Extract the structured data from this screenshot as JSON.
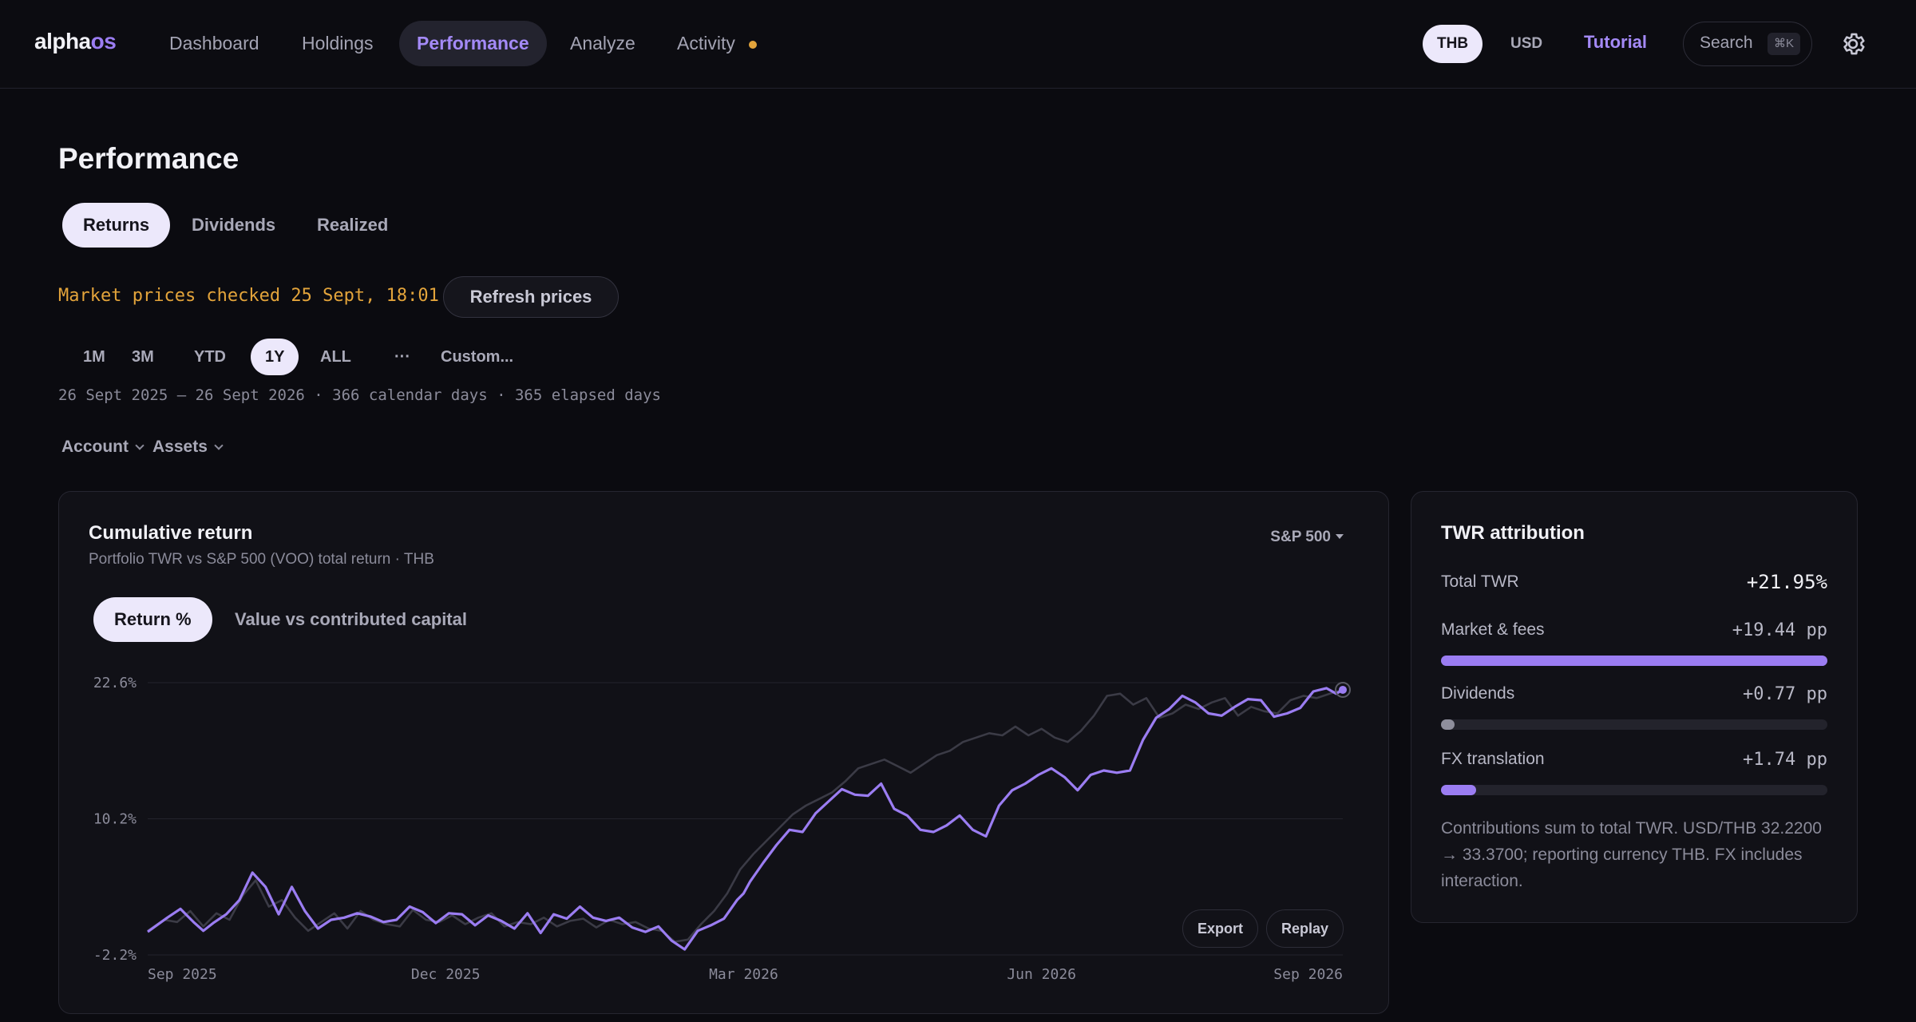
{
  "app": {
    "logo_a": "alpha",
    "logo_b": "os"
  },
  "nav": {
    "items": [
      "Dashboard",
      "Holdings",
      "Performance",
      "Analyze",
      "Activity"
    ],
    "active": "Performance"
  },
  "currency": {
    "options": [
      "THB",
      "USD"
    ],
    "selected": "THB"
  },
  "tutorial_label": "Tutorial",
  "search": {
    "label": "Search",
    "shortcut": "⌘K"
  },
  "page": {
    "title": "Performance",
    "tabs": [
      "Returns",
      "Dividends",
      "Realized"
    ],
    "active_tab": "Returns",
    "prices_msg": "Market prices checked 25 Sept, 18:01",
    "refresh_label": "Refresh prices",
    "ranges": [
      "1M",
      "3M",
      "YTD",
      "1Y",
      "ALL",
      "···",
      "Custom..."
    ],
    "active_range": "1Y",
    "range_info": "26 Sept 2025 – 26 Sept 2026 · 366 calendar days · 365 elapsed days",
    "filters": [
      "Account",
      "Assets"
    ]
  },
  "chart_card": {
    "title": "Cumulative return",
    "subtitle": "Portfolio TWR vs S&P 500 (VOO) total return · THB",
    "benchmark": "S&P 500",
    "modes": [
      "Return %",
      "Value vs contributed capital"
    ],
    "active_mode": "Return %",
    "export_label": "Export",
    "replay_label": "Replay"
  },
  "chart_data": {
    "type": "line",
    "ylim": [
      -2.2,
      22.6
    ],
    "yticks": [
      "22.6%",
      "10.2%",
      "-2.2%"
    ],
    "ytick_values": [
      22.6,
      10.2,
      -2.2
    ],
    "xticks": [
      "Sep 2025",
      "Dec 2025",
      "Mar 2026",
      "Jun 2026",
      "Sep 2026"
    ],
    "xtick_days": [
      0,
      91,
      182,
      273,
      365
    ],
    "x_days_total": 365,
    "series": [
      {
        "color": "#9b7df2",
        "x": [
          0,
          6,
          10,
          14,
          17,
          20,
          24,
          28,
          32,
          36,
          40,
          44,
          48,
          52,
          56,
          60,
          64,
          68,
          72,
          76,
          80,
          84,
          88,
          92,
          96,
          100,
          104,
          108,
          112,
          116,
          120,
          124,
          128,
          132,
          136,
          140,
          144,
          148,
          152,
          156,
          160,
          164,
          168,
          172,
          176,
          180,
          182,
          184,
          188,
          192,
          196,
          200,
          204,
          208,
          212,
          216,
          220,
          224,
          228,
          232,
          236,
          240,
          244,
          248,
          252,
          256,
          260,
          264,
          268,
          272,
          276,
          280,
          284,
          288,
          292,
          296,
          300,
          304,
          308,
          312,
          316,
          320,
          324,
          328,
          332,
          336,
          340,
          344,
          348,
          352,
          356,
          360,
          363,
          365
        ],
        "y": [
          -0.1,
          1.2,
          2.0,
          0.8,
          0.0,
          0.7,
          1.5,
          2.8,
          5.3,
          4.0,
          1.5,
          4.0,
          1.8,
          0.2,
          1.0,
          1.2,
          1.6,
          1.3,
          0.8,
          1.0,
          2.2,
          1.7,
          0.7,
          1.6,
          1.5,
          0.5,
          1.4,
          0.9,
          0.2,
          1.6,
          -0.2,
          1.5,
          1.1,
          2.2,
          1.2,
          0.9,
          1.2,
          0.3,
          -0.1,
          0.4,
          -0.9,
          -1.7,
          0.0,
          0.5,
          1.1,
          2.8,
          3.4,
          4.5,
          6.2,
          7.8,
          9.2,
          9.0,
          10.7,
          11.8,
          12.9,
          12.4,
          12.3,
          13.4,
          11.1,
          10.5,
          9.2,
          9.0,
          9.6,
          10.5,
          9.2,
          8.6,
          11.4,
          12.8,
          13.4,
          14.2,
          14.8,
          14.0,
          12.8,
          14.2,
          14.6,
          14.4,
          14.6,
          17.4,
          19.4,
          20.2,
          21.4,
          20.8,
          19.8,
          19.6,
          20.4,
          21.1,
          21.0,
          19.5,
          19.8,
          20.3,
          21.8,
          22.1,
          21.6,
          21.95
        ]
      },
      {
        "color": "#3b3b46",
        "x": [
          0,
          5,
          9,
          13,
          17,
          21,
          25,
          29,
          33,
          37,
          41,
          45,
          49,
          53,
          57,
          61,
          65,
          69,
          73,
          77,
          81,
          85,
          89,
          93,
          97,
          101,
          105,
          109,
          113,
          117,
          121,
          125,
          129,
          133,
          137,
          141,
          145,
          149,
          153,
          157,
          161,
          165,
          169,
          173,
          177,
          181,
          185,
          189,
          193,
          197,
          201,
          205,
          209,
          213,
          217,
          221,
          225,
          229,
          233,
          237,
          241,
          245,
          249,
          253,
          257,
          261,
          265,
          269,
          273,
          277,
          281,
          285,
          289,
          293,
          297,
          301,
          305,
          309,
          313,
          317,
          321,
          325,
          329,
          333,
          337,
          341,
          345,
          349,
          353,
          357,
          361,
          365
        ],
        "y": [
          0.0,
          1.0,
          0.8,
          1.8,
          0.4,
          1.6,
          1.0,
          3.2,
          4.6,
          2.2,
          2.8,
          1.2,
          0.0,
          0.8,
          1.6,
          0.2,
          1.8,
          1.0,
          0.6,
          0.4,
          1.9,
          1.0,
          0.8,
          1.4,
          0.6,
          1.2,
          1.6,
          0.4,
          0.8,
          0.6,
          1.2,
          0.4,
          0.9,
          1.1,
          0.3,
          1.0,
          0.6,
          0.8,
          0.2,
          0.0,
          -1.0,
          -0.8,
          0.6,
          1.8,
          3.4,
          5.6,
          7.0,
          8.2,
          9.4,
          10.6,
          11.4,
          12.0,
          12.6,
          13.6,
          14.8,
          15.2,
          15.6,
          15.0,
          14.4,
          15.2,
          16.0,
          16.4,
          17.2,
          17.6,
          18.0,
          17.8,
          18.6,
          17.8,
          18.4,
          17.6,
          17.2,
          18.2,
          19.6,
          21.4,
          21.6,
          20.6,
          21.2,
          19.4,
          19.8,
          20.6,
          20.2,
          20.8,
          21.2,
          19.6,
          20.4,
          20.0,
          19.8,
          21.0,
          21.4,
          21.2,
          21.6,
          21.95
        ]
      }
    ]
  },
  "attribution": {
    "title": "TWR attribution",
    "total_label": "Total TWR",
    "total_value": "+21.95%",
    "rows": [
      {
        "label": "Market & fees",
        "value": "+19.44 pp",
        "fraction": 1.0
      },
      {
        "label": "Dividends",
        "value": "+0.77 pp",
        "fraction": 0.04
      },
      {
        "label": "FX translation",
        "value": "+1.74 pp",
        "fraction": 0.09
      }
    ],
    "note": "Contributions sum to total TWR. USD/THB 32.2200 → 33.3700; reporting currency THB. FX includes interaction."
  },
  "colors": {
    "accent": "#9b7df2",
    "warning": "#e3a43b",
    "background": "#0b0b10"
  }
}
